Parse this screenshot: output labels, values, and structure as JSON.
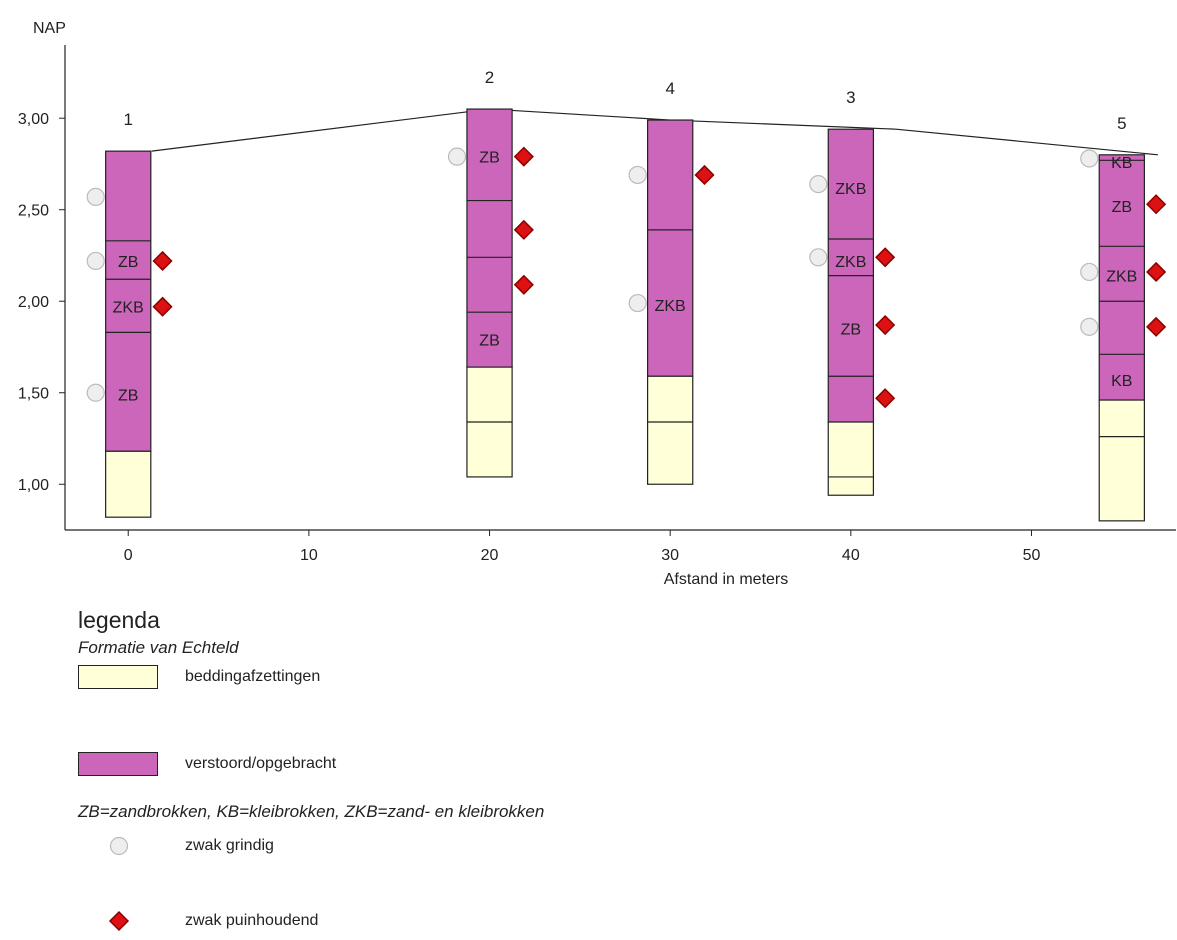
{
  "colors": {
    "verstoord": "#cc66bb",
    "bedding": "#ffffd8",
    "grindig": "#eeeeee",
    "puin": "#dd1111",
    "line": "#222222"
  },
  "chart_data": {
    "type": "borehole-profile",
    "ylabel": "NAP",
    "xlabel": "Afstand in meters",
    "xlim": [
      -3.5,
      58
    ],
    "ylim": [
      0.75,
      3.4
    ],
    "xticks": [
      0,
      10,
      20,
      30,
      40,
      50
    ],
    "yticks": [
      1.0,
      1.5,
      2.0,
      2.5,
      3.0
    ],
    "ytick_labels": [
      "1,00",
      "1,50",
      "2,00",
      "2,50",
      "3,00"
    ],
    "surface_line": [
      [
        1.3,
        2.82
      ],
      [
        20,
        3.05
      ],
      [
        30,
        2.99
      ],
      [
        42.5,
        2.94
      ],
      [
        57,
        2.8
      ]
    ],
    "boreholes": [
      {
        "number": "1",
        "x": 0,
        "top": 2.82,
        "bottom": 0.82,
        "bedding_top": 1.18,
        "boundaries": [
          2.33,
          2.12,
          1.83
        ],
        "labels": [
          {
            "text": "ZB",
            "y": 2.22
          },
          {
            "text": "ZKB",
            "y": 1.97
          },
          {
            "text": "ZB",
            "y": 1.49
          }
        ],
        "grindig": [
          2.57,
          2.22,
          1.5
        ],
        "puin": [
          2.22,
          1.97
        ]
      },
      {
        "number": "2",
        "x": 20,
        "top": 3.05,
        "bottom": 1.04,
        "bedding_top": 1.64,
        "boundaries": [
          2.55,
          2.24,
          1.94,
          1.34
        ],
        "labels": [
          {
            "text": "ZB",
            "y": 2.79
          },
          {
            "text": "ZB",
            "y": 1.79
          }
        ],
        "grindig": [
          2.79
        ],
        "puin": [
          2.79,
          2.39,
          2.09
        ]
      },
      {
        "number": "4",
        "x": 30,
        "top": 2.99,
        "bottom": 1.0,
        "bedding_top": 1.59,
        "boundaries": [
          2.39,
          1.34
        ],
        "labels": [
          {
            "text": "ZKB",
            "y": 1.98
          }
        ],
        "grindig": [
          2.69,
          1.99
        ],
        "puin": [
          2.69
        ]
      },
      {
        "number": "3",
        "x": 40,
        "top": 2.94,
        "bottom": 0.94,
        "bedding_top": 1.34,
        "boundaries": [
          2.34,
          2.14,
          1.59,
          1.04
        ],
        "labels": [
          {
            "text": "ZKB",
            "y": 2.62
          },
          {
            "text": "ZKB",
            "y": 2.22
          },
          {
            "text": "ZB",
            "y": 1.85
          }
        ],
        "grindig": [
          2.64,
          2.24
        ],
        "puin": [
          2.24,
          1.87,
          1.47
        ]
      },
      {
        "number": "5",
        "x": 55,
        "top": 2.8,
        "bottom": 0.8,
        "bedding_top": 1.46,
        "boundaries": [
          2.77,
          2.3,
          2.0,
          1.71,
          1.26
        ],
        "labels": [
          {
            "text": "KB",
            "y": 2.76
          },
          {
            "text": "ZB",
            "y": 2.52
          },
          {
            "text": "ZKB",
            "y": 2.14
          },
          {
            "text": "KB",
            "y": 1.57
          }
        ],
        "grindig": [
          2.78,
          2.16,
          1.86
        ],
        "puin": [
          2.53,
          2.16,
          1.86
        ]
      }
    ]
  },
  "legend": {
    "title": "legenda",
    "subtitle": "Formatie van Echteld",
    "bedding_label": "beddingafzettingen",
    "verstoord_label": "verstoord/opgebracht",
    "abbreviations": "ZB=zandbrokken, KB=kleibrokken, ZKB=zand- en kleibrokken",
    "grindig_label": "zwak grindig",
    "puin_label": "zwak puinhoudend"
  }
}
